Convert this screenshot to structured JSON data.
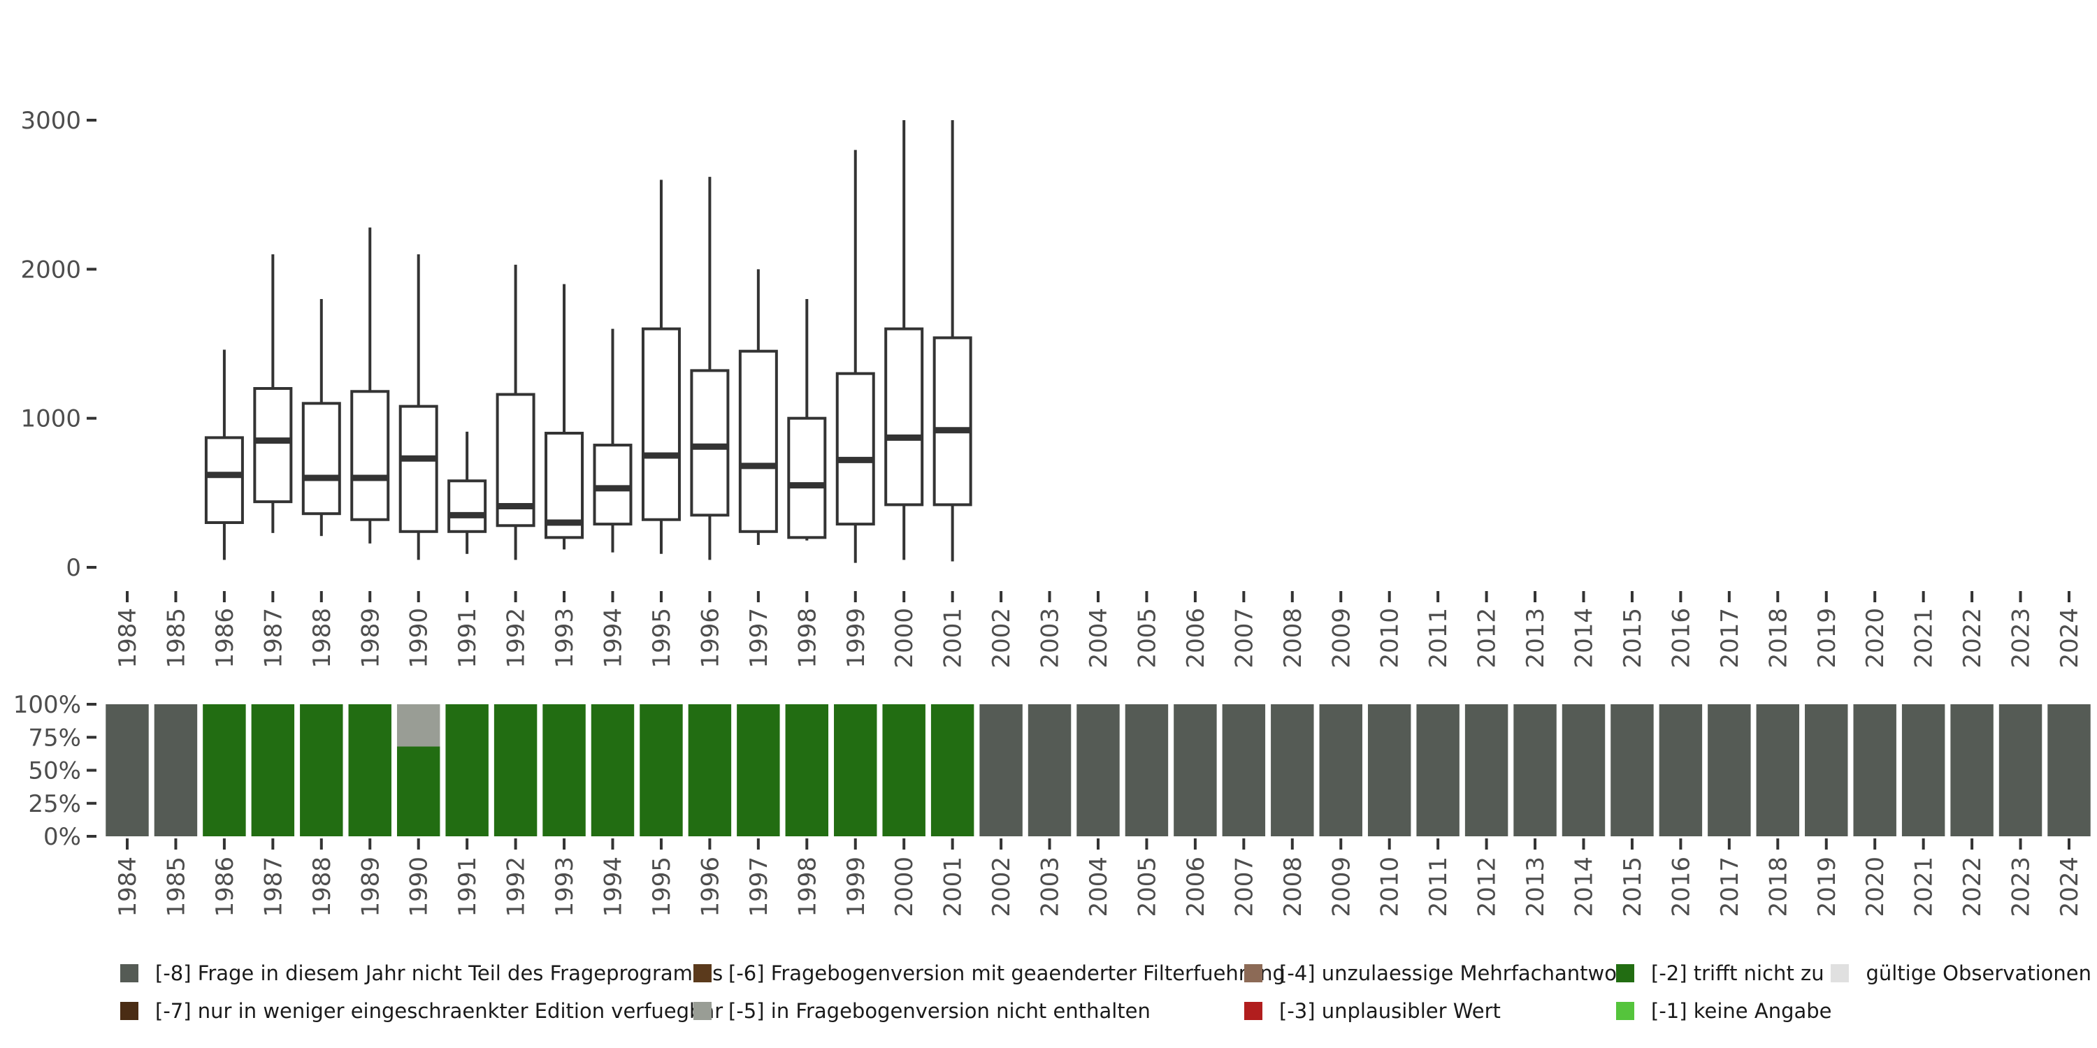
{
  "chart_data": [
    {
      "type": "boxplot",
      "title": "",
      "xlabel": "",
      "ylabel": "",
      "ylim": [
        -100,
        3300
      ],
      "yticks": [
        0,
        1000,
        2000,
        3000
      ],
      "ytick_labels": [
        "0",
        "1000",
        "2000",
        "3000"
      ],
      "years": [
        "1984",
        "1985",
        "1986",
        "1987",
        "1988",
        "1989",
        "1990",
        "1991",
        "1992",
        "1993",
        "1994",
        "1995",
        "1996",
        "1997",
        "1998",
        "1999",
        "2000",
        "2001",
        "2002",
        "2003",
        "2004",
        "2005",
        "2006",
        "2007",
        "2008",
        "2009",
        "2010",
        "2011",
        "2012",
        "2013",
        "2014",
        "2015",
        "2016",
        "2017",
        "2018",
        "2019",
        "2020",
        "2021",
        "2022",
        "2023",
        "2024"
      ],
      "boxes": [
        {
          "year": "1986",
          "min": 50,
          "q1": 300,
          "median": 620,
          "q3": 870,
          "max": 1460
        },
        {
          "year": "1987",
          "min": 230,
          "q1": 440,
          "median": 850,
          "q3": 1200,
          "max": 2100
        },
        {
          "year": "1988",
          "min": 210,
          "q1": 360,
          "median": 600,
          "q3": 1100,
          "max": 1800
        },
        {
          "year": "1989",
          "min": 160,
          "q1": 320,
          "median": 600,
          "q3": 1180,
          "max": 2280
        },
        {
          "year": "1990",
          "min": 50,
          "q1": 240,
          "median": 730,
          "q3": 1080,
          "max": 2100
        },
        {
          "year": "1991",
          "min": 90,
          "q1": 240,
          "median": 350,
          "q3": 580,
          "max": 910
        },
        {
          "year": "1992",
          "min": 50,
          "q1": 280,
          "median": 410,
          "q3": 1160,
          "max": 2030
        },
        {
          "year": "1993",
          "min": 120,
          "q1": 200,
          "median": 300,
          "q3": 900,
          "max": 1900
        },
        {
          "year": "1994",
          "min": 100,
          "q1": 290,
          "median": 530,
          "q3": 820,
          "max": 1600
        },
        {
          "year": "1995",
          "min": 90,
          "q1": 320,
          "median": 750,
          "q3": 1600,
          "max": 2600
        },
        {
          "year": "1996",
          "min": 50,
          "q1": 350,
          "median": 810,
          "q3": 1320,
          "max": 2620
        },
        {
          "year": "1997",
          "min": 150,
          "q1": 240,
          "median": 680,
          "q3": 1450,
          "max": 2000
        },
        {
          "year": "1998",
          "min": 180,
          "q1": 200,
          "median": 550,
          "q3": 1000,
          "max": 1800
        },
        {
          "year": "1999",
          "min": 30,
          "q1": 290,
          "median": 720,
          "q3": 1300,
          "max": 2800
        },
        {
          "year": "2000",
          "min": 50,
          "q1": 420,
          "median": 870,
          "q3": 1600,
          "max": 3000
        },
        {
          "year": "2001",
          "min": 40,
          "q1": 420,
          "median": 920,
          "q3": 1540,
          "max": 3000
        }
      ]
    },
    {
      "type": "stacked-bar",
      "title": "",
      "xlabel": "",
      "ylabel": "",
      "ylim": [
        0,
        1
      ],
      "yticks": [
        0,
        0.25,
        0.5,
        0.75,
        1
      ],
      "ytick_labels": [
        "0%",
        "25%",
        "50%",
        "75%",
        "100%"
      ],
      "categories": [
        "1984",
        "1985",
        "1986",
        "1987",
        "1988",
        "1989",
        "1990",
        "1991",
        "1992",
        "1993",
        "1994",
        "1995",
        "1996",
        "1997",
        "1998",
        "1999",
        "2000",
        "2001",
        "2002",
        "2003",
        "2004",
        "2005",
        "2006",
        "2007",
        "2008",
        "2009",
        "2010",
        "2011",
        "2012",
        "2013",
        "2014",
        "2015",
        "2016",
        "2017",
        "2018",
        "2019",
        "2020",
        "2021",
        "2022",
        "2023",
        "2024"
      ],
      "series": [
        {
          "name": "[-8] Frage in diesem Jahr nicht Teil des Frageprogramms",
          "values": [
            1,
            1,
            0,
            0,
            0,
            0,
            0,
            0,
            0,
            0,
            0,
            0,
            0,
            0,
            0,
            0,
            0,
            0,
            1,
            1,
            1,
            1,
            1,
            1,
            1,
            1,
            1,
            1,
            1,
            1,
            1,
            1,
            1,
            1,
            1,
            1,
            1,
            1,
            1,
            1,
            1
          ]
        },
        {
          "name": "[-2] trifft nicht zu",
          "values": [
            0,
            0,
            1,
            1,
            1,
            1,
            0.68,
            1,
            1,
            1,
            1,
            1,
            1,
            1,
            1,
            1,
            1,
            1,
            0,
            0,
            0,
            0,
            0,
            0,
            0,
            0,
            0,
            0,
            0,
            0,
            0,
            0,
            0,
            0,
            0,
            0,
            0,
            0,
            0,
            0,
            0
          ]
        },
        {
          "name": "[-5] in Fragebogenversion nicht enthalten",
          "values": [
            0,
            0,
            0,
            0,
            0,
            0,
            0.32,
            0,
            0,
            0,
            0,
            0,
            0,
            0,
            0,
            0,
            0,
            0,
            0,
            0,
            0,
            0,
            0,
            0,
            0,
            0,
            0,
            0,
            0,
            0,
            0,
            0,
            0,
            0,
            0,
            0,
            0,
            0,
            0,
            0,
            0
          ]
        }
      ]
    }
  ],
  "legend": {
    "rows": [
      [
        {
          "label": "[-8] Frage in diesem Jahr nicht Teil des Frageprogramms",
          "color": "#555b55"
        },
        {
          "label": "[-6] Fragebogenversion mit geaenderter Filterfuehrung",
          "color": "#5b3a1c"
        },
        {
          "label": "[-4] unzulaessige Mehrfachantwort",
          "color": "#8c6a56"
        },
        {
          "label": "[-2] trifft nicht zu",
          "color": "#226d12"
        },
        {
          "label": "gültige Observationen",
          "color": "#e0e0e0"
        }
      ],
      [
        {
          "label": "[-7] nur in weniger eingeschraenkter Edition verfuegbar",
          "color": "#4a2c14"
        },
        {
          "label": "[-5] in Fragebogenversion nicht enthalten",
          "color": "#999d95"
        },
        {
          "label": "[-3] unplausibler Wert",
          "color": "#b11e1e"
        },
        {
          "label": "[-1] keine Angabe",
          "color": "#55c43c"
        }
      ]
    ]
  },
  "colors": {
    "box_stroke": "#333333",
    "axis_text": "#4d4d4d",
    "tick_mark": "#333333"
  }
}
